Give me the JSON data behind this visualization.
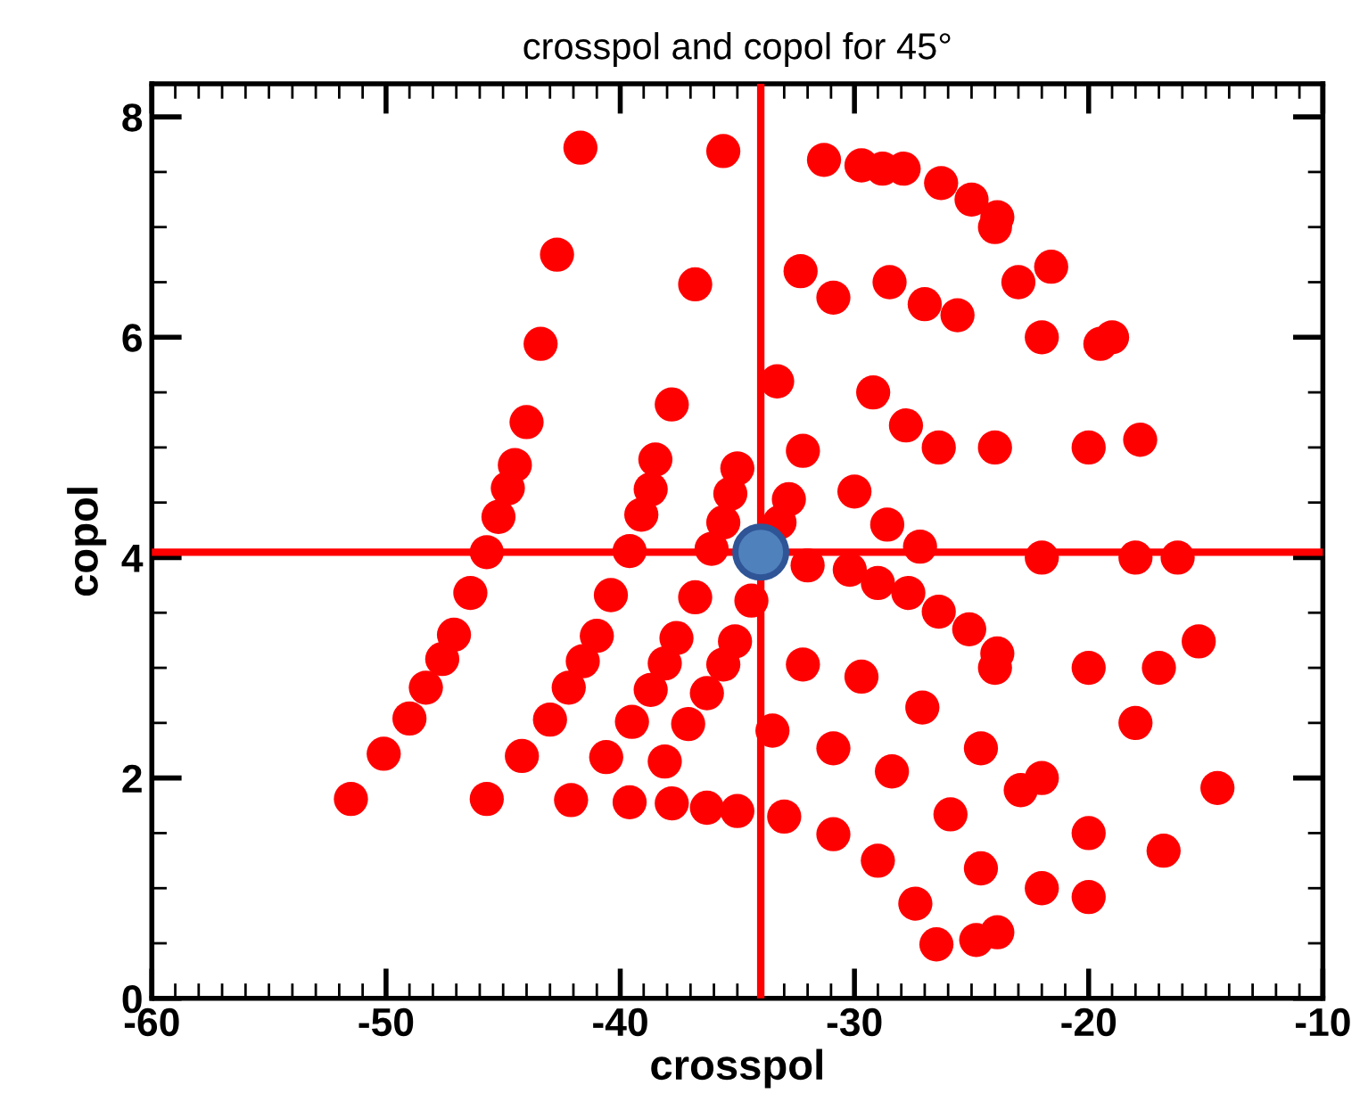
{
  "chart_data": {
    "type": "scatter",
    "title": "crosspol and copol for 45°",
    "xlabel": "crosspol",
    "ylabel": "copol",
    "xlim": [
      -60,
      -10
    ],
    "ylim": [
      0,
      8.3
    ],
    "xticks": [
      -60,
      {
        "value": -59,
        "label": null
      },
      {
        "value": -58,
        "label": null
      },
      {
        "value": -57,
        "label": null
      },
      {
        "value": -56,
        "label": null
      },
      {
        "value": -55,
        "label": null
      },
      {
        "value": -54,
        "label": null
      },
      {
        "value": -53,
        "label": null
      },
      {
        "value": -52,
        "label": null
      },
      {
        "value": -51,
        "label": null
      },
      -50,
      {
        "value": -49,
        "label": null
      },
      {
        "value": -48,
        "label": null
      },
      {
        "value": -47,
        "label": null
      },
      {
        "value": -46,
        "label": null
      },
      {
        "value": -45,
        "label": null
      },
      {
        "value": -44,
        "label": null
      },
      {
        "value": -43,
        "label": null
      },
      {
        "value": -42,
        "label": null
      },
      {
        "value": -41,
        "label": null
      },
      -40,
      {
        "value": -39,
        "label": null
      },
      {
        "value": -38,
        "label": null
      },
      {
        "value": -37,
        "label": null
      },
      {
        "value": -36,
        "label": null
      },
      {
        "value": -35,
        "label": null
      },
      {
        "value": -34,
        "label": null
      },
      {
        "value": -33,
        "label": null
      },
      {
        "value": -32,
        "label": null
      },
      {
        "value": -31,
        "label": null
      },
      -30,
      {
        "value": -29,
        "label": null
      },
      {
        "value": -28,
        "label": null
      },
      {
        "value": -27,
        "label": null
      },
      {
        "value": -26,
        "label": null
      },
      {
        "value": -25,
        "label": null
      },
      {
        "value": -24,
        "label": null
      },
      {
        "value": -23,
        "label": null
      },
      {
        "value": -22,
        "label": null
      },
      {
        "value": -21,
        "label": null
      },
      -20,
      {
        "value": -19,
        "label": null
      },
      {
        "value": -18,
        "label": null
      },
      {
        "value": -17,
        "label": null
      },
      {
        "value": -16,
        "label": null
      },
      {
        "value": -15,
        "label": null
      },
      {
        "value": -14,
        "label": null
      },
      {
        "value": -13,
        "label": null
      },
      {
        "value": -12,
        "label": null
      },
      {
        "value": -11,
        "label": null
      },
      -10
    ],
    "yticks": [
      0,
      {
        "value": 0.5,
        "label": null
      },
      {
        "value": 1,
        "label": null
      },
      {
        "value": 1.5,
        "label": null
      },
      2,
      {
        "value": 2.5,
        "label": null
      },
      {
        "value": 3,
        "label": null
      },
      {
        "value": 3.5,
        "label": null
      },
      4,
      {
        "value": 4.5,
        "label": null
      },
      {
        "value": 5,
        "label": null
      },
      {
        "value": 5.5,
        "label": null
      },
      6,
      {
        "value": 6.5,
        "label": null
      },
      {
        "value": 7,
        "label": null
      },
      {
        "value": 7.5,
        "label": null
      },
      8
    ],
    "marker": "circle",
    "grid": false,
    "legend": false,
    "ref_lines": [
      {
        "axis": "x",
        "value": -34,
        "color": "#ff0000",
        "line_style": "solid"
      },
      {
        "axis": "y",
        "value": 4.05,
        "color": "#ff0000",
        "line_style": "solid"
      }
    ],
    "series": [
      {
        "color": "#ff0000",
        "x": [
          -51.5,
          -50.1,
          -49.0,
          -48.3,
          -47.6,
          -47.1,
          -46.4,
          -45.7,
          -45.2,
          -44.8,
          -44.5,
          -44.0,
          -43.4,
          -42.7,
          -41.7,
          -45.7,
          -44.2,
          -43.0,
          -42.2,
          -41.6,
          -41.0,
          -40.4,
          -39.6,
          -39.1,
          -38.7,
          -38.5,
          -37.8,
          -36.8,
          -35.6,
          -42.1,
          -40.6,
          -39.5,
          -38.7,
          -38.1,
          -37.6,
          -36.8,
          -36.1,
          -35.6,
          -35.3,
          -35.0,
          -33.3,
          -32.3,
          -31.3,
          -39.6,
          -38.1,
          -37.1,
          -36.3,
          -35.6,
          -35.1,
          -34.4,
          -33.2,
          -32.8,
          -32.2,
          -30.9,
          -29.7,
          -28.8,
          -37.8,
          -36.3,
          -35.0,
          -33.0,
          -30.9,
          -29.0,
          -27.4,
          -26.5,
          -24.8,
          -23.9,
          -20.0,
          -16.8,
          -14.5,
          -15.3,
          -16.2,
          -17.8,
          -19.5,
          -21.6,
          -23.9,
          -25.0,
          -26.3,
          -27.9,
          -32.0,
          -30.2,
          -29.0,
          -27.7,
          -26.4,
          -25.1,
          -23.9,
          -32.2,
          -29.7,
          -27.1,
          -24.6,
          -22.9,
          -33.5,
          -30.9,
          -28.4,
          -25.9,
          -24.6,
          -22.0,
          -20.0,
          -18.0,
          -22.0,
          -20.0,
          -22.0,
          -24.0,
          -18.0,
          -20.0,
          -22.0,
          -24.0,
          -17.0,
          -19.0,
          -23.0,
          -24.0,
          -28.5,
          -29.2,
          -30.0,
          -27.0,
          -27.8,
          -28.6,
          -25.6,
          -26.4,
          -27.2
        ],
        "values": [
          1.81,
          2.22,
          2.54,
          2.82,
          3.08,
          3.3,
          3.68,
          4.05,
          4.37,
          4.63,
          4.84,
          5.23,
          5.94,
          6.75,
          7.72,
          1.81,
          2.2,
          2.53,
          2.82,
          3.06,
          3.29,
          3.66,
          4.06,
          4.39,
          4.62,
          4.89,
          5.39,
          6.48,
          7.69,
          1.8,
          2.19,
          2.51,
          2.8,
          3.04,
          3.27,
          3.64,
          4.08,
          4.32,
          4.58,
          4.81,
          5.6,
          6.6,
          7.61,
          1.78,
          2.15,
          2.49,
          2.77,
          3.03,
          3.24,
          3.61,
          4.32,
          4.53,
          4.97,
          6.36,
          7.56,
          7.53,
          1.77,
          1.73,
          1.7,
          1.65,
          1.49,
          1.25,
          0.86,
          0.49,
          0.53,
          0.6,
          0.92,
          1.34,
          1.91,
          3.24,
          4.0,
          5.07,
          5.94,
          6.64,
          7.09,
          7.25,
          7.4,
          7.53,
          3.93,
          3.89,
          3.77,
          3.68,
          3.51,
          3.35,
          3.13,
          3.03,
          2.92,
          2.64,
          2.27,
          1.89,
          2.43,
          2.27,
          2.06,
          1.67,
          1.18,
          2.0,
          3.0,
          4.0,
          4.0,
          5.0,
          6.0,
          5.0,
          2.5,
          1.5,
          1.0,
          3.0,
          3.0,
          6.0,
          6.5,
          7.0,
          6.5,
          5.5,
          4.6,
          6.3,
          5.2,
          4.3,
          6.2,
          5.0,
          4.1
        ]
      },
      {
        "color": "#4f81bd",
        "x": [
          -34
        ],
        "values": [
          4.05
        ]
      }
    ]
  }
}
